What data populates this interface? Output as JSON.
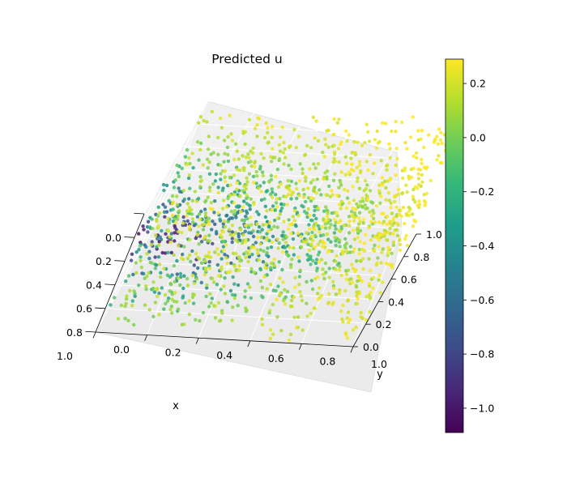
{
  "chart_data": {
    "type": "scatter",
    "projection": "3d",
    "title": "Predicted u",
    "xlabel": "x",
    "ylabel": "y",
    "zlabel": "",
    "xlim": [
      0.0,
      1.0
    ],
    "ylim": [
      0.0,
      1.0
    ],
    "zlim": [
      0.0,
      1.0
    ],
    "xticks": [
      "0.0",
      "0.2",
      "0.4",
      "0.6",
      "0.8",
      "1.0"
    ],
    "yticks": [
      "0.0",
      "0.2",
      "0.4",
      "0.6",
      "0.8",
      "1.0"
    ],
    "zticks": [
      "0.0",
      "0.2",
      "0.4",
      "0.6",
      "0.8",
      "1.0"
    ],
    "colormap": "viridis",
    "color_range": [
      -1.09,
      0.29
    ],
    "colorbar_ticks": [
      "0.2",
      "0.0",
      "−0.2",
      "−0.4",
      "−0.6",
      "−0.8",
      "−1.0"
    ],
    "colorbar_tick_values": [
      0.2,
      0.0,
      -0.2,
      -0.4,
      -0.6,
      -0.8,
      -1.0
    ],
    "grid": true,
    "point_count": 1600,
    "value_pattern": "u increases with x and with z; lowest values near x≈0.3, y≈0, z≈0; highest near x≈0.7, y≈1, z≈1"
  }
}
